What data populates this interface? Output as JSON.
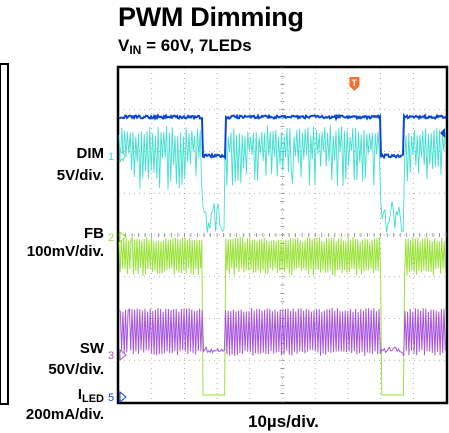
{
  "chart_data": {
    "type": "line",
    "title": "PWM Dimming",
    "subtitle": {
      "prefix": "V",
      "sub": "IN",
      "rest": " = 60V, 7LEDs"
    },
    "xlabel": "10µs/div.",
    "channels": [
      {
        "name": "DIM",
        "scale": "5V/div.",
        "marker": "1",
        "color": "#40e0d0"
      },
      {
        "name": "FB",
        "scale": "100mV/div.",
        "marker": "2",
        "color": "#9be33a"
      },
      {
        "name": "SW",
        "scale": "50V/div.",
        "marker": "3",
        "color": "#a855e0"
      },
      {
        "name_prefix": "I",
        "name_sub": "LED",
        "scale": "200mA/div.",
        "marker": "5",
        "color": "#0a47d6"
      }
    ],
    "trigger_marker": "T",
    "trigger_color": "#f07030",
    "grid": true,
    "time_divisions": 10,
    "pwm_off_intervals_div": [
      [
        2.55,
        3.25
      ],
      [
        8.0,
        8.7
      ]
    ]
  }
}
